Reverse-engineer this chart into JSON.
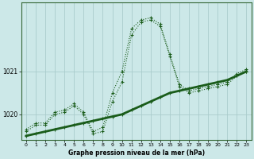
{
  "title": "Graphe pression niveau de la mer (hPa)",
  "bg_color": "#cce8e8",
  "grid_color": "#aacccc",
  "line_color": "#1a5c1a",
  "x_ticks": [
    0,
    1,
    2,
    3,
    4,
    5,
    6,
    7,
    8,
    9,
    10,
    11,
    12,
    13,
    14,
    15,
    16,
    17,
    18,
    19,
    20,
    21,
    22,
    23
  ],
  "y_ticks": [
    1020,
    1021
  ],
  "ylim": [
    1019.4,
    1022.6
  ],
  "xlim": [
    -0.5,
    23.5
  ],
  "series_main": {
    "x": [
      0,
      1,
      2,
      3,
      4,
      5,
      6,
      7,
      8,
      9,
      10,
      11,
      12,
      13,
      14,
      15,
      16,
      17,
      18,
      19,
      20,
      21,
      22,
      23
    ],
    "y": [
      1019.6,
      1019.75,
      1019.75,
      1020.0,
      1020.05,
      1020.2,
      1020.0,
      1019.55,
      1019.6,
      1020.3,
      1020.75,
      1021.85,
      1022.15,
      1022.2,
      1022.05,
      1021.35,
      1020.65,
      1020.5,
      1020.55,
      1020.6,
      1020.65,
      1020.7,
      1020.9,
      1021.0
    ]
  },
  "series_upper": {
    "x": [
      0,
      1,
      2,
      3,
      4,
      5,
      6,
      7,
      8,
      9,
      10,
      11,
      12,
      13,
      14,
      15,
      16,
      17,
      18,
      19,
      20,
      21,
      22,
      23
    ],
    "y": [
      1019.65,
      1019.8,
      1019.8,
      1020.05,
      1020.1,
      1020.25,
      1020.05,
      1019.6,
      1019.7,
      1020.5,
      1021.0,
      1022.0,
      1022.2,
      1022.25,
      1022.1,
      1021.4,
      1020.7,
      1020.55,
      1020.6,
      1020.65,
      1020.7,
      1020.75,
      1020.95,
      1021.05
    ]
  },
  "series_trend": {
    "x": [
      0,
      1,
      2,
      3,
      4,
      5,
      6,
      7,
      8,
      9,
      10,
      11,
      12,
      13,
      14,
      15,
      16,
      17,
      18,
      19,
      20,
      21,
      22,
      23
    ],
    "y": [
      1019.5,
      1019.55,
      1019.6,
      1019.65,
      1019.7,
      1019.75,
      1019.8,
      1019.85,
      1019.9,
      1019.95,
      1020.0,
      1020.1,
      1020.2,
      1020.3,
      1020.4,
      1020.5,
      1020.55,
      1020.6,
      1020.65,
      1020.7,
      1020.75,
      1020.8,
      1020.9,
      1021.0
    ]
  }
}
